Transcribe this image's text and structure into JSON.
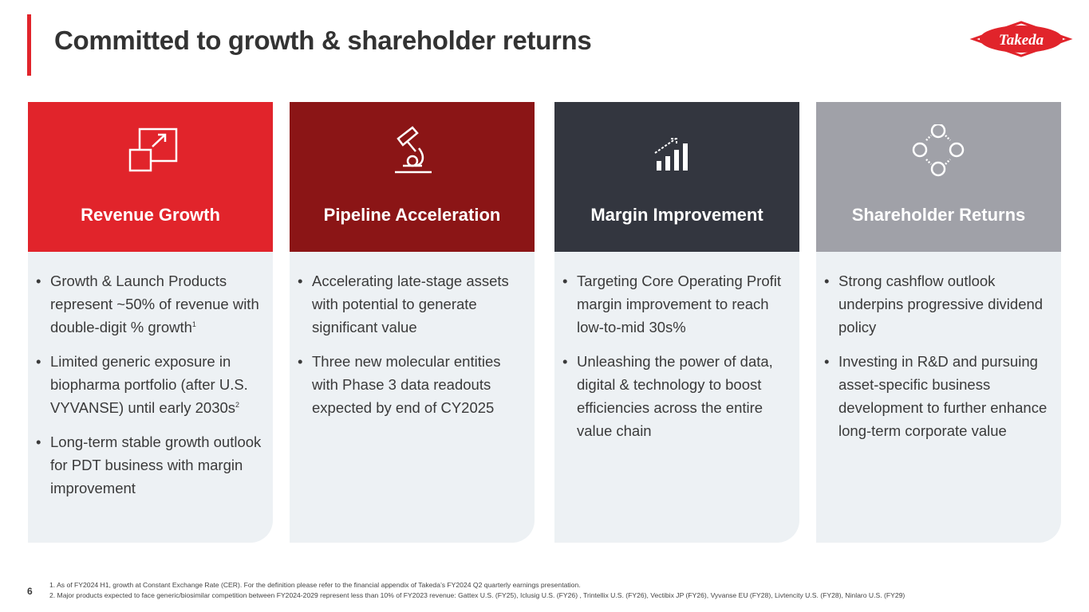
{
  "header": {
    "title": "Committed to growth & shareholder returns",
    "logo": "Takeda"
  },
  "cards": [
    {
      "heading": "Revenue Growth",
      "bullets": [
        {
          "text": "Growth & Launch Products represent ~50% of revenue with double-digit % growth",
          "sup": "1"
        },
        {
          "text": "Limited generic exposure in biopharma portfolio (after U.S. VYVANSE) until early 2030s",
          "sup": "2"
        },
        {
          "text": "Long-term stable growth outlook for PDT business with margin improvement"
        }
      ]
    },
    {
      "heading": "Pipeline Acceleration",
      "bullets": [
        {
          "text": "Accelerating late-stage assets with potential to generate significant value"
        },
        {
          "text": "Three new molecular entities with Phase 3 data readouts expected by end of CY2025"
        }
      ]
    },
    {
      "heading": "Margin Improvement",
      "bullets": [
        {
          "text": "Targeting Core Operating Profit margin improvement to reach low-to-mid 30s%"
        },
        {
          "text": "Unleashing the power of data, digital & technology to boost efficiencies across the entire value chain"
        }
      ]
    },
    {
      "heading": "Shareholder Returns",
      "bullets": [
        {
          "text": "Strong cashflow outlook underpins progressive dividend policy"
        },
        {
          "text": "Investing in R&D and pursuing asset-specific business development to further enhance long-term corporate value"
        }
      ]
    }
  ],
  "footer": {
    "page": "6",
    "footnotes": [
      "1. As of FY2024 H1, growth at Constant Exchange Rate (CER). For the definition please refer to the financial appendix of Takeda’s FY2024 Q2 quarterly earnings presentation.",
      "2. Major products expected to face generic/biosimilar competition between FY2024-2029 represent less than 10% of FY2023 revenue: Gattex U.S. (FY25), Iclusig U.S. (FY26) , Trintellix U.S. (FY26), Vectibix JP (FY26), Vyvanse EU (FY28), Livtencity U.S. (FY28), Ninlaro U.S. (FY29)"
    ]
  }
}
